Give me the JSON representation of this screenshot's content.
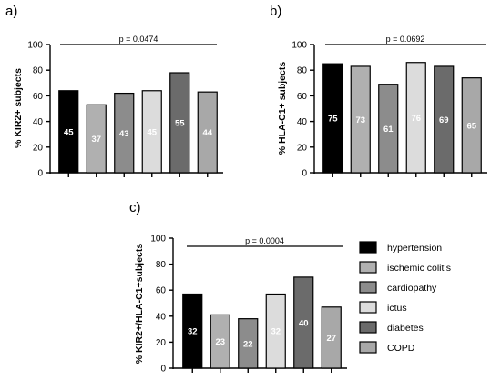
{
  "legend": {
    "entries": [
      {
        "label": "hypertension",
        "color": "#000000"
      },
      {
        "label": "ischemic colitis",
        "color": "#b0b0b0"
      },
      {
        "label": "cardiopathy",
        "color": "#8c8c8c"
      },
      {
        "label": "ictus",
        "color": "#dcdcdc"
      },
      {
        "label": "diabetes",
        "color": "#6b6b6b"
      },
      {
        "label": "COPD",
        "color": "#a8a8a8"
      }
    ]
  },
  "chart_data": [
    {
      "panel": "a)",
      "type": "bar",
      "ylabel": "% KIR2+ subjects",
      "ylim": [
        0,
        100
      ],
      "yticks": [
        0,
        20,
        40,
        60,
        80,
        100
      ],
      "significance": "p = 0.0474",
      "categories": [
        "hypertension",
        "ischemic colitis",
        "cardiopathy",
        "ictus",
        "diabetes",
        "COPD"
      ],
      "values": [
        64,
        53,
        62,
        64,
        78,
        63
      ],
      "labels": [
        "45",
        "37",
        "43",
        "45",
        "55",
        "44"
      ]
    },
    {
      "panel": "b)",
      "type": "bar",
      "ylabel": "% HLA-C1+ subjects",
      "ylim": [
        0,
        100
      ],
      "yticks": [
        0,
        20,
        40,
        60,
        80,
        100
      ],
      "significance": "p = 0.0692",
      "categories": [
        "hypertension",
        "ischemic colitis",
        "cardiopathy",
        "ictus",
        "diabetes",
        "COPD"
      ],
      "values": [
        85,
        83,
        69,
        86,
        83,
        74
      ],
      "labels": [
        "75",
        "73",
        "61",
        "76",
        "69",
        "65"
      ]
    },
    {
      "panel": "c)",
      "type": "bar",
      "ylabel": "% KIR2+/HLA-C1+subjects",
      "ylim": [
        0,
        100
      ],
      "yticks": [
        0,
        20,
        40,
        60,
        80,
        100
      ],
      "significance": "p = 0.0004",
      "categories": [
        "hypertension",
        "ischemic colitis",
        "cardiopathy",
        "ictus",
        "diabetes",
        "COPD"
      ],
      "values": [
        57,
        41,
        38,
        57,
        70,
        47
      ],
      "labels": [
        "32",
        "23",
        "22",
        "32",
        "40",
        "27"
      ]
    }
  ]
}
